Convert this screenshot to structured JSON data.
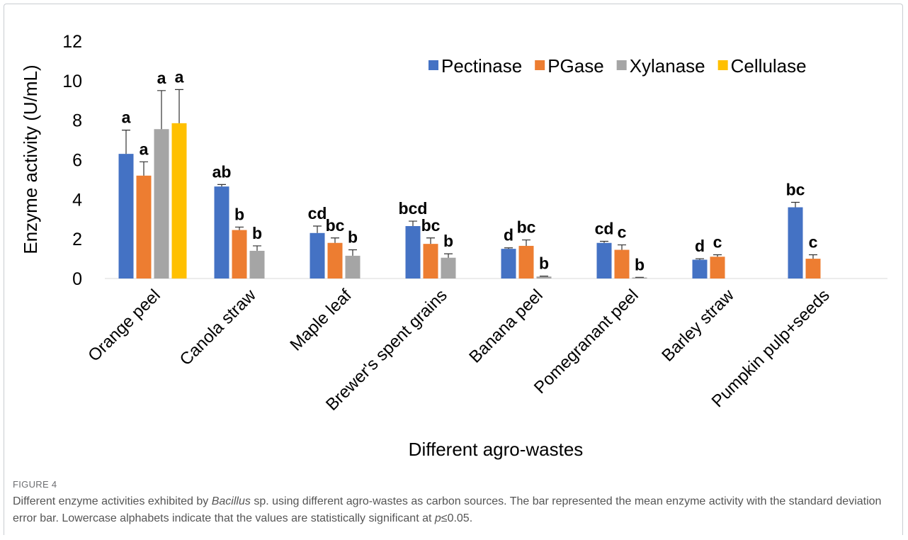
{
  "chart_data": {
    "type": "bar",
    "ylabel": "Enzyme activity (U/mL)",
    "xlabel": "Different agro-wastes",
    "categories": [
      "Orange peel",
      "Canola straw",
      "Maple leaf",
      "Brewer's spent grains",
      "Banana peel",
      "Pomegranant peel",
      "Barley straw",
      "Pumpkin pulp+seeds"
    ],
    "series": [
      {
        "name": "Pectinase",
        "color": "#4472c4",
        "values": [
          6.3,
          4.65,
          2.3,
          2.65,
          1.5,
          1.8,
          0.95,
          3.6
        ],
        "errors": [
          1.2,
          0.1,
          0.35,
          0.25,
          0.05,
          0.08,
          0.05,
          0.25
        ],
        "letters": [
          "a",
          "ab",
          "cd",
          "bcd",
          "d",
          "cd",
          "d",
          "bc"
        ]
      },
      {
        "name": "PGase",
        "color": "#ed7d31",
        "values": [
          5.2,
          2.45,
          1.8,
          1.75,
          1.65,
          1.45,
          1.1,
          1.0
        ],
        "errors": [
          0.7,
          0.15,
          0.25,
          0.3,
          0.3,
          0.25,
          0.1,
          0.2
        ],
        "letters": [
          "a",
          "b",
          "bc",
          "bc",
          "bc",
          "c",
          "c",
          "c"
        ]
      },
      {
        "name": "Xylanase",
        "color": "#a5a5a5",
        "values": [
          7.55,
          1.4,
          1.15,
          1.05,
          0.1,
          0.05,
          null,
          null
        ],
        "errors": [
          1.95,
          0.25,
          0.3,
          0.2,
          0.02,
          0.01,
          null,
          null
        ],
        "letters": [
          "a",
          "b",
          "b",
          "b",
          "b",
          "b",
          null,
          null
        ]
      },
      {
        "name": "Cellulase",
        "color": "#ffc000",
        "values": [
          7.85,
          null,
          null,
          null,
          null,
          null,
          null,
          null
        ],
        "errors": [
          1.7,
          null,
          null,
          null,
          null,
          null,
          null,
          null
        ],
        "letters": [
          "a",
          null,
          null,
          null,
          null,
          null,
          null,
          null
        ]
      }
    ],
    "ylim": [
      0,
      12
    ],
    "yticks": [
      0,
      2,
      4,
      6,
      8,
      10,
      12
    ],
    "grid": false,
    "legend": "top-right"
  },
  "caption": {
    "label": "FIGURE 4",
    "parts": [
      "Different enzyme activities exhibited by ",
      "Bacillus",
      " sp. using different agro-wastes as carbon sources. The bar represented the mean enzyme activity with the standard deviation error bar. Lowercase alphabets indicate that the values are statistically significant at ",
      "p",
      "≤0.05."
    ]
  }
}
